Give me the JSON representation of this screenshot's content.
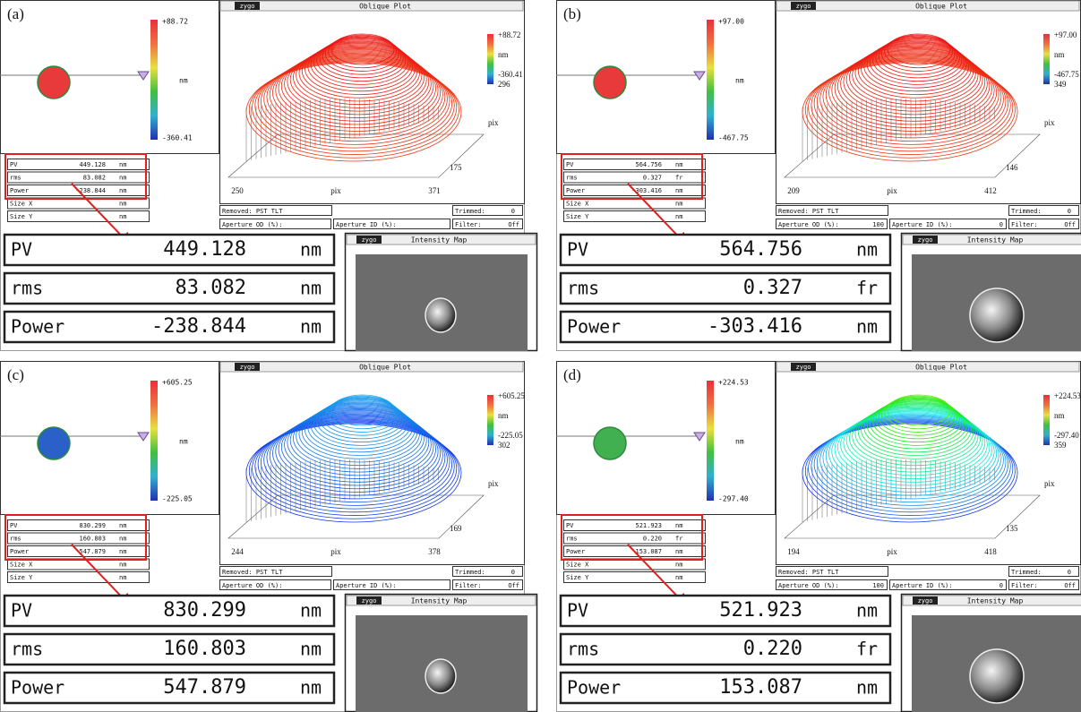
{
  "panels": [
    {
      "label": "(a)",
      "colorbar": {
        "max": "+88.72",
        "unit": "nm",
        "min": "-360.41"
      },
      "oblique_plot": {
        "logo": "zygo",
        "title": "Oblique Plot",
        "scale_max": "+88.72",
        "scale_unit": "nm",
        "scale_min": "-360.41",
        "y_end": "296",
        "x_start": "250",
        "x_label": "pix",
        "x_end": "371",
        "y_start": "175",
        "y_label": "pix"
      },
      "small_table": [
        [
          "PV",
          "449.128",
          "nm"
        ],
        [
          "rms",
          "83.082",
          "nm"
        ],
        [
          "Power",
          "-238.844",
          "nm"
        ],
        [
          "Size X",
          "nm"
        ],
        [
          "Size Y",
          "nm"
        ]
      ],
      "fields": {
        "removed": "Removed: PST TLT",
        "trimmed_label": "Trimmed:",
        "trimmed_value": "0",
        "aperture_od": "Aperture OD (%):",
        "aperture_id": "Aperture ID (%):",
        "filter_label": "Filter:",
        "filter_value": "Off"
      },
      "big_table": [
        [
          "PV",
          "449.128",
          "nm"
        ],
        [
          "rms",
          "83.082",
          "nm"
        ],
        [
          "Power",
          "-238.844",
          "nm"
        ]
      ],
      "intensity_map": {
        "logo": "zygo",
        "title": "Intensity Map"
      }
    },
    {
      "label": "(b)",
      "colorbar": {
        "max": "+97.00",
        "unit": "nm",
        "min": "-467.75"
      },
      "oblique_plot": {
        "logo": "zygo",
        "title": "Oblique Plot",
        "scale_max": "+97.00",
        "scale_unit": "nm",
        "scale_min": "-467.75",
        "y_end": "349",
        "x_start": "209",
        "x_label": "pix",
        "x_end": "412",
        "y_start": "146",
        "y_label": "pix"
      },
      "small_table": [
        [
          "PV",
          "564.756",
          "nm"
        ],
        [
          "rms",
          "0.327",
          "fr"
        ],
        [
          "Power",
          "-303.416",
          "nm"
        ],
        [
          "Size X",
          "nm"
        ],
        [
          "Size Y",
          "nm"
        ]
      ],
      "fields": {
        "removed": "Removed: PST TLT",
        "trimmed_label": "Trimmed:",
        "trimmed_value": "0",
        "aperture_od": "Aperture OD (%):",
        "aperture_od_value": "100",
        "aperture_id": "Aperture ID (%):",
        "aperture_id_value": "0",
        "filter_label": "Filter:",
        "filter_value": "Off"
      },
      "big_table": [
        [
          "PV",
          "564.756",
          "nm"
        ],
        [
          "rms",
          "0.327",
          "fr"
        ],
        [
          "Power",
          "-303.416",
          "nm"
        ]
      ],
      "intensity_map": {
        "logo": "zygo",
        "title": "Intensity Map"
      }
    },
    {
      "label": "(c)",
      "colorbar": {
        "max": "+605.25",
        "unit": "nm",
        "min": "-225.05"
      },
      "oblique_plot": {
        "logo": "zygo",
        "title": "Oblique Plot",
        "scale_max": "+605.25",
        "scale_unit": "nm",
        "scale_min": "-225.05",
        "y_end": "302",
        "x_start": "244",
        "x_label": "pix",
        "x_end": "378",
        "y_start": "169",
        "y_label": "pix"
      },
      "small_table": [
        [
          "PV",
          "830.299",
          "nm"
        ],
        [
          "rms",
          "160.803",
          "nm"
        ],
        [
          "Power",
          "547.879",
          "nm"
        ],
        [
          "Size X",
          "nm"
        ],
        [
          "Size Y",
          "nm"
        ]
      ],
      "fields": {
        "removed": "Removed: PST TLT",
        "trimmed_label": "Trimmed:",
        "trimmed_value": "0",
        "aperture_od": "Aperture OD (%):",
        "aperture_id": "Aperture ID (%):",
        "filter_label": "Filter:",
        "filter_value": "Off"
      },
      "big_table": [
        [
          "PV",
          "830.299",
          "nm"
        ],
        [
          "rms",
          "160.803",
          "nm"
        ],
        [
          "Power",
          "547.879",
          "nm"
        ]
      ],
      "intensity_map": {
        "logo": "zygo",
        "title": "Intensity Map"
      }
    },
    {
      "label": "(d)",
      "colorbar": {
        "max": "+224.53",
        "unit": "nm",
        "min": "-297.40"
      },
      "oblique_plot": {
        "logo": "zygo",
        "title": "Oblique Plot",
        "scale_max": "+224.53",
        "scale_unit": "nm",
        "scale_min": "-297.40",
        "y_end": "359",
        "x_start": "194",
        "x_label": "pix",
        "x_end": "418",
        "y_start": "135",
        "y_label": "pix"
      },
      "small_table": [
        [
          "PV",
          "521.923",
          "nm"
        ],
        [
          "rms",
          "0.220",
          "fr"
        ],
        [
          "Power",
          "153.087",
          "nm"
        ],
        [
          "Size X",
          "nm"
        ],
        [
          "Size Y",
          "nm"
        ]
      ],
      "fields": {
        "removed": "Removed: PST TLT",
        "trimmed_label": "Trimmed:",
        "trimmed_value": "0",
        "aperture_od": "Aperture OD (%):",
        "aperture_od_value": "100",
        "aperture_id": "Aperture ID (%):",
        "aperture_id_value": "0",
        "filter_label": "Filter:",
        "filter_value": "Off"
      },
      "big_table": [
        [
          "PV",
          "521.923",
          "nm"
        ],
        [
          "rms",
          "0.220",
          "fr"
        ],
        [
          "Power",
          "153.087",
          "nm"
        ]
      ],
      "intensity_map": {
        "logo": "zygo",
        "title": "Intensity Map"
      }
    }
  ]
}
